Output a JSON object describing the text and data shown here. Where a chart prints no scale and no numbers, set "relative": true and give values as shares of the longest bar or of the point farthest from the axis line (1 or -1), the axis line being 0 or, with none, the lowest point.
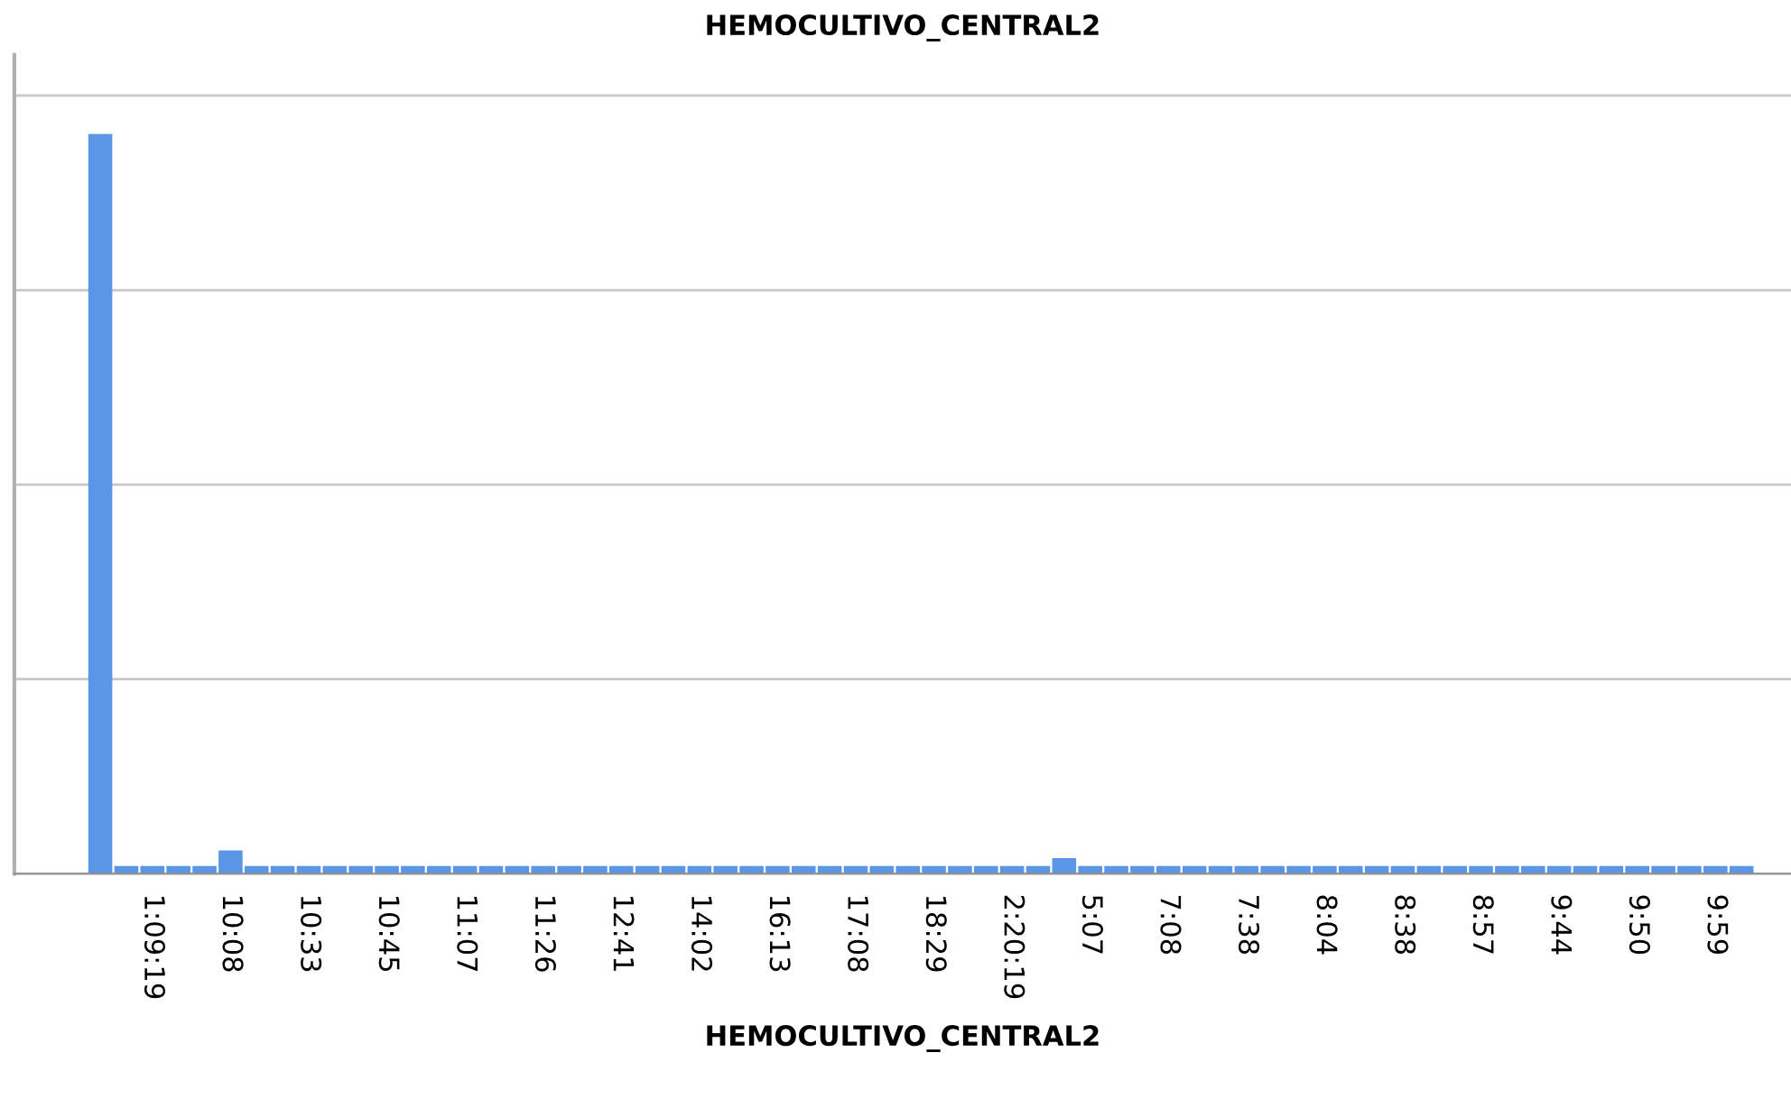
{
  "chart_data": {
    "type": "bar",
    "title": "HEMOCULTIVO_CENTRAL2",
    "xlabel": "HEMOCULTIVO_CENTRAL2",
    "categories": [
      null,
      null,
      "1:09:19",
      null,
      null,
      "10:08",
      null,
      null,
      "10:33",
      null,
      null,
      "10:45",
      null,
      null,
      "11:07",
      null,
      null,
      "11:26",
      null,
      null,
      "12:41",
      null,
      null,
      "14:02",
      null,
      null,
      "16:13",
      null,
      null,
      "17:08",
      null,
      null,
      "18:29",
      null,
      null,
      "2:20:19",
      null,
      null,
      "5:07",
      null,
      null,
      "7:08",
      null,
      null,
      "7:38",
      null,
      null,
      "8:04",
      null,
      null,
      "8:38",
      null,
      null,
      "8:57",
      null,
      null,
      "9:44",
      null,
      null,
      "9:50",
      null,
      null,
      "9:59",
      null
    ],
    "values": [
      1,
      0.0105,
      0.0105,
      0.0105,
      0.0105,
      0.0316,
      0.0105,
      0.0105,
      0.0105,
      0.0105,
      0.0105,
      0.0105,
      0.0105,
      0.0105,
      0.0105,
      0.0105,
      0.0105,
      0.0105,
      0.0105,
      0.0105,
      0.0105,
      0.0105,
      0.0105,
      0.0105,
      0.0105,
      0.0105,
      0.0105,
      0.0105,
      0.0105,
      0.0105,
      0.0105,
      0.0105,
      0.0105,
      0.0105,
      0.0105,
      0.0105,
      0.0105,
      0.021,
      0.0105,
      0.0105,
      0.0105,
      0.0105,
      0.0105,
      0.0105,
      0.0105,
      0.0105,
      0.0105,
      0.0105,
      0.0105,
      0.0105,
      0.0105,
      0.0105,
      0.0105,
      0.0105,
      0.0105,
      0.0105,
      0.0105,
      0.0105,
      0.0105,
      0.0105,
      0.0105,
      0.0105,
      0.0105,
      0.0105
    ],
    "color": "#5b95e6",
    "relative": true,
    "grid": "y",
    "tick_labels": "x"
  }
}
